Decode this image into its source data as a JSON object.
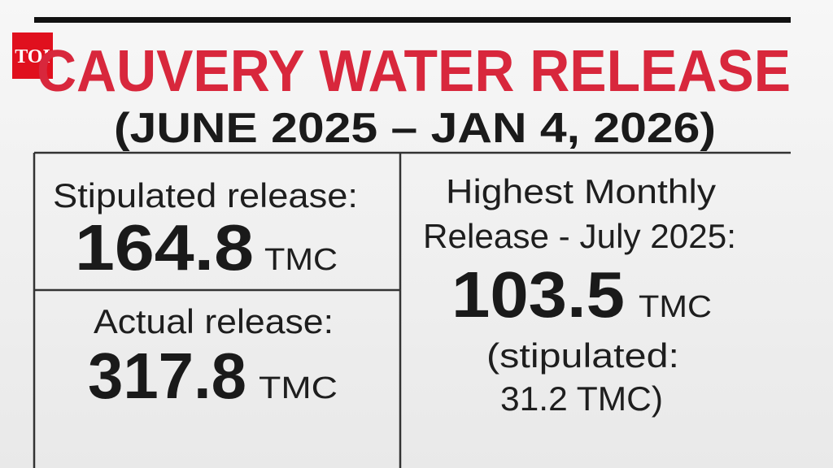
{
  "logo": "TOI",
  "header": {
    "title": "CAUVERY WATER RELEASE",
    "subtitle": "(JUNE 2025 – JAN 4, 2026)"
  },
  "stipulated": {
    "label": "Stipulated release:",
    "value": "164.8",
    "unit": "TMC"
  },
  "actual": {
    "label": "Actual release:",
    "value": "317.8",
    "unit": "TMC"
  },
  "highest": {
    "label_line1": "Highest Monthly",
    "label_line2": "Release - July 2025:",
    "value": "103.5",
    "unit": "TMC",
    "note_line1": "(stipulated:",
    "note_line2": "31.2 TMC)"
  }
}
